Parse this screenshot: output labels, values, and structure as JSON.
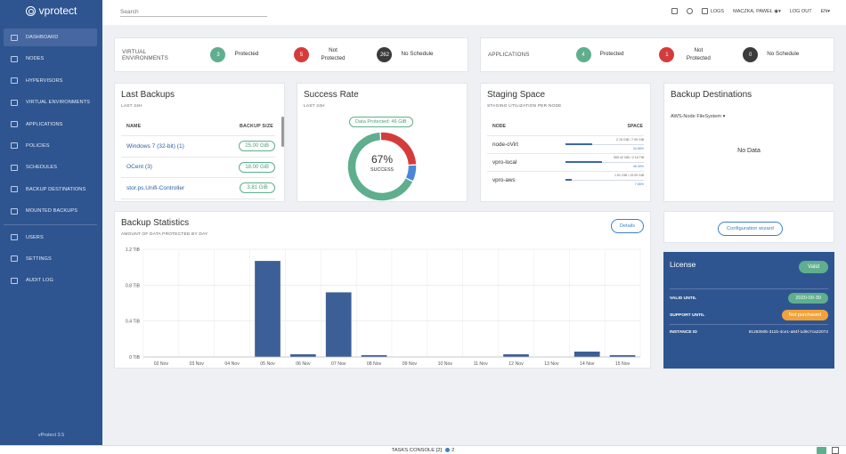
{
  "app": {
    "logo_text": "vprotect",
    "version": "vProtect 3.5"
  },
  "sidebar": {
    "items": [
      {
        "label": "DASHBOARD",
        "icon": "dashboard-icon",
        "active": true
      },
      {
        "label": "NODES",
        "icon": "nodes-icon"
      },
      {
        "label": "HYPERVISORS",
        "icon": "hypervisors-icon"
      },
      {
        "label": "VIRTUAL ENVIRONMENTS",
        "icon": "virtual-environments-icon"
      },
      {
        "label": "APPLICATIONS",
        "icon": "applications-icon"
      },
      {
        "label": "POLICIES",
        "icon": "policies-icon"
      },
      {
        "label": "SCHEDULES",
        "icon": "schedules-icon"
      },
      {
        "label": "BACKUP DESTINATIONS",
        "icon": "backup-destinations-icon"
      },
      {
        "label": "MOUNTED BACKUPS",
        "icon": "mounted-backups-icon"
      },
      {
        "label": "USERS",
        "icon": "users-icon"
      },
      {
        "label": "SETTINGS",
        "icon": "settings-icon"
      },
      {
        "label": "AUDIT LOG",
        "icon": "audit-log-icon"
      }
    ]
  },
  "topbar": {
    "search_placeholder": "Search",
    "logs": "LOGS",
    "user": "MACZKA, PAWEŁ",
    "logout": "LOG OUT",
    "lang": "EN"
  },
  "virtual_env": {
    "title": "VIRTUAL ENVIRONMENTS",
    "protected_count": "3",
    "protected_label": "Protected",
    "not_protected_count": "5",
    "not_protected_label": "Not Protected",
    "no_schedule_count": "262",
    "no_schedule_label": "No Schedule"
  },
  "applications": {
    "title": "APPLICATIONS",
    "protected_count": "4",
    "protected_label": "Protected",
    "not_protected_count": "1",
    "not_protected_label": "Not Protected",
    "no_schedule_count": "0",
    "no_schedule_label": "No Schedule"
  },
  "last_backups": {
    "title": "Last Backups",
    "subtitle": "LAST 24H",
    "col_name": "NAME",
    "col_size": "BACKUP SIZE",
    "rows": [
      {
        "name": "Windows 7 (32-bit) (1)",
        "size": "25.00 GiB"
      },
      {
        "name": "OCent (3)",
        "size": "18.00 GiB"
      },
      {
        "name": "stor.ps.Unifi-Controller",
        "size": "3.81 GiB"
      }
    ]
  },
  "success_rate": {
    "title": "Success Rate",
    "subtitle": "LAST 24H",
    "protected_pill": "Data Protected: 46 GiB",
    "percent": "67%",
    "label": "SUCCESS",
    "segments": [
      {
        "value": 67,
        "color": "#5fae8e"
      },
      {
        "value": 8,
        "color": "#4a86d9"
      },
      {
        "value": 25,
        "color": "#d43c3c"
      }
    ]
  },
  "staging": {
    "title": "Staging Space",
    "subtitle": "STAGING UTILIZATION PER NODE",
    "col_node": "NODE",
    "col_space": "SPACE",
    "rows": [
      {
        "node": "node-oVirt",
        "usage": "2.76 GiB / 7.99 GiB",
        "pct": "34.56%",
        "fraction": 0.3456
      },
      {
        "node": "vpro-local",
        "usage": "959.42 GiB / 2.16 TiB",
        "pct": "46.40%",
        "fraction": 0.464
      },
      {
        "node": "vpro-aws",
        "usage": "1.51 GiB / 19.99 GiB",
        "pct": "7.56%",
        "fraction": 0.0756
      }
    ]
  },
  "destinations": {
    "title": "Backup Destinations",
    "selected": "AWS-Node FileSystem",
    "no_data": "No Data"
  },
  "backup_stats": {
    "title": "Backup Statistics",
    "subtitle": "AMOUNT OF DATA PROTECTED BY DAY",
    "details_button": "Details"
  },
  "wizard": {
    "button": "Configuration wizard"
  },
  "license": {
    "title": "License",
    "status": "Valid",
    "valid_until_label": "VALID UNTIL",
    "valid_until_value": "2020-09-30",
    "support_until_label": "SUPPORT UNTIL",
    "support_until_value": "Not purchased",
    "instance_id_label": "INSTANCE ID",
    "instance_id_value": "9128350b-311b-4ce1-a84f-1d9c7ca22072"
  },
  "footer": {
    "tasks_console": "TASKS CONSOLE [2]",
    "task_count": "2"
  },
  "chart_data": {
    "type": "bar",
    "categories": [
      "02 Nov",
      "03 Nov",
      "04 Nov",
      "05 Nov",
      "06 Nov",
      "07 Nov",
      "08 Nov",
      "09 Nov",
      "10 Nov",
      "11 Nov",
      "12 Nov",
      "13 Nov",
      "14 Nov",
      "15 Nov"
    ],
    "values": [
      0,
      0,
      0,
      1.07,
      0.03,
      0.72,
      0.02,
      0,
      0,
      0,
      0.03,
      0,
      0.06,
      0.02
    ],
    "y_unit": "TiB",
    "yticks": [
      "0 TiB",
      "0.4 TiB",
      "0.8 TiB",
      "1.2 TiB"
    ],
    "ylim": [
      0,
      1.2
    ],
    "bar_color": "#3d5f98",
    "grid": true
  }
}
